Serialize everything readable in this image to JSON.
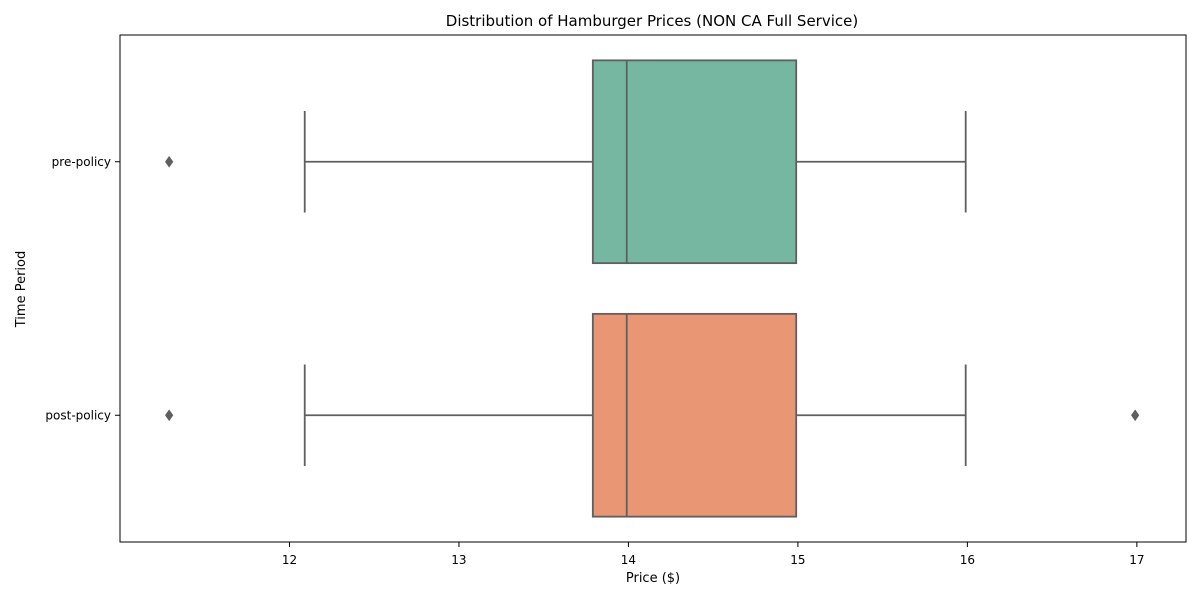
{
  "chart_data": {
    "type": "boxplot",
    "orientation": "horizontal",
    "title": "Distribution of Hamburger Prices (NON CA Full Service)",
    "xlabel": "Price ($)",
    "ylabel": "Time Period",
    "xlim": [
      11.0,
      17.29
    ],
    "xticks": [
      12,
      13,
      14,
      15,
      16,
      17
    ],
    "grid": false,
    "categories": [
      "pre-policy",
      "post-policy"
    ],
    "boxes": [
      {
        "category": "pre-policy",
        "color": "#76b7a2",
        "whisker_low": 12.09,
        "q1": 13.79,
        "median": 13.99,
        "q3": 14.99,
        "whisker_high": 15.99,
        "outliers": [
          11.29
        ]
      },
      {
        "category": "post-policy",
        "color": "#e99674",
        "whisker_low": 12.09,
        "q1": 13.79,
        "median": 13.99,
        "q3": 14.99,
        "whisker_high": 15.99,
        "outliers": [
          11.29,
          16.99
        ]
      }
    ],
    "line_color": "#5f5f5f"
  }
}
